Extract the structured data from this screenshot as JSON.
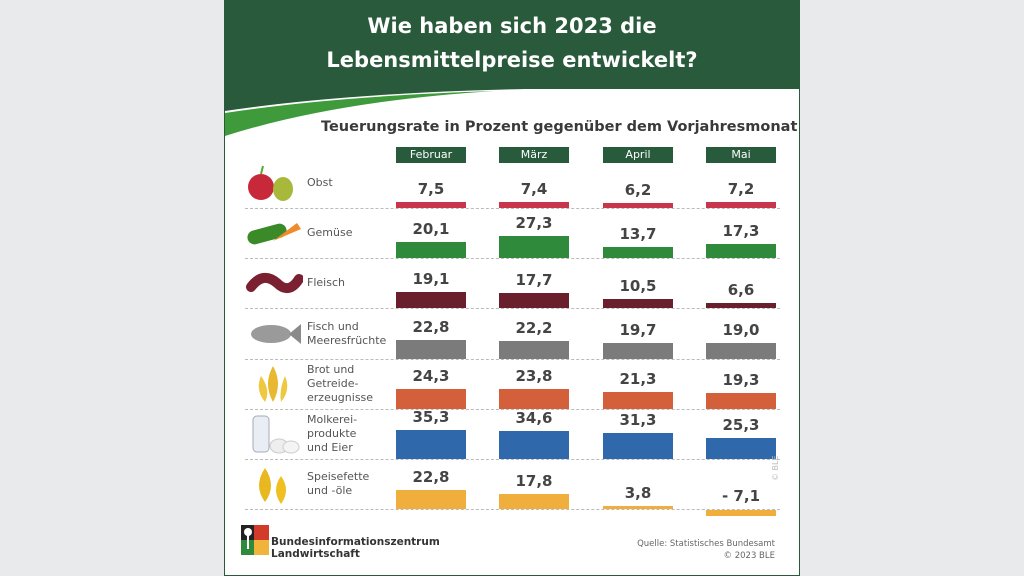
{
  "header": {
    "title_line1": "Wie haben sich 2023 die",
    "title_line2": "Lebensmittelpreise entwickelt?"
  },
  "chart_data": {
    "type": "bar",
    "title": "Wie haben sich 2023 die Lebensmittelpreise entwickelt?",
    "subtitle": "Teuerungsrate in Prozent gegenüber dem Vorjahresmonat",
    "categories": [
      "Februar",
      "März",
      "April",
      "Mai"
    ],
    "series": [
      {
        "name": "Obst",
        "values": [
          7.5,
          7.4,
          6.2,
          7.2
        ],
        "labels": [
          "7,5",
          "7,4",
          "6,2",
          "7,2"
        ],
        "color": "#c7364a",
        "icon": "apple-pear-icon"
      },
      {
        "name": "Gemüse",
        "values": [
          20.1,
          27.3,
          13.7,
          17.3
        ],
        "labels": [
          "20,1",
          "27,3",
          "13,7",
          "17,3"
        ],
        "color": "#2f8a3c",
        "icon": "cucumber-carrot-icon"
      },
      {
        "name": "Fleisch",
        "values": [
          19.1,
          17.7,
          10.5,
          6.6
        ],
        "labels": [
          "19,1",
          "17,7",
          "10,5",
          "6,6"
        ],
        "color": "#6a1f2d",
        "icon": "sausage-icon"
      },
      {
        "name": "Fisch und Meeresfrüchte",
        "values": [
          22.8,
          22.2,
          19.7,
          19.0
        ],
        "labels": [
          "22,8",
          "22,2",
          "19,7",
          "19,0"
        ],
        "color": "#7b7b7b",
        "icon": "fish-icon"
      },
      {
        "name": "Brot und Getreide-erzeugnisse",
        "values": [
          24.3,
          23.8,
          21.3,
          19.3
        ],
        "labels": [
          "24,3",
          "23,8",
          "21,3",
          "19,3"
        ],
        "color": "#d35f3b",
        "icon": "wheat-icon"
      },
      {
        "name": "Molkerei-produkte und Eier",
        "values": [
          35.3,
          34.6,
          31.3,
          25.3
        ],
        "labels": [
          "35,3",
          "34,6",
          "31,3",
          "25,3"
        ],
        "color": "#2f69ac",
        "icon": "milk-eggs-icon"
      },
      {
        "name": "Speisefette und -öle",
        "values": [
          22.8,
          17.8,
          3.8,
          -7.1
        ],
        "labels": [
          "22,8",
          "17,8",
          "3,8",
          "- 7,1"
        ],
        "color": "#f0ae3c",
        "icon": "oil-drops-icon"
      }
    ],
    "row_label_lines": [
      [
        "Obst"
      ],
      [
        "Gemüse"
      ],
      [
        "Fleisch"
      ],
      [
        "Fisch und",
        "Meeresfrüchte"
      ],
      [
        "Brot und",
        "Getreide-",
        "erzeugnisse"
      ],
      [
        "Molkerei-",
        "produkte",
        "und Eier"
      ],
      [
        "Speisefette",
        "und -öle"
      ]
    ],
    "grid": false,
    "legend": "none"
  },
  "footer": {
    "logo_line1": "Bundesinformationszentrum",
    "logo_line2": "Landwirtschaft",
    "source": "Quelle: Statistisches Bundesamt",
    "copyright": "© 2023 BLE",
    "watermark": "© BLE"
  },
  "colors": {
    "header_green": "#2a5a3c",
    "accent_green": "#3f9a3c"
  }
}
